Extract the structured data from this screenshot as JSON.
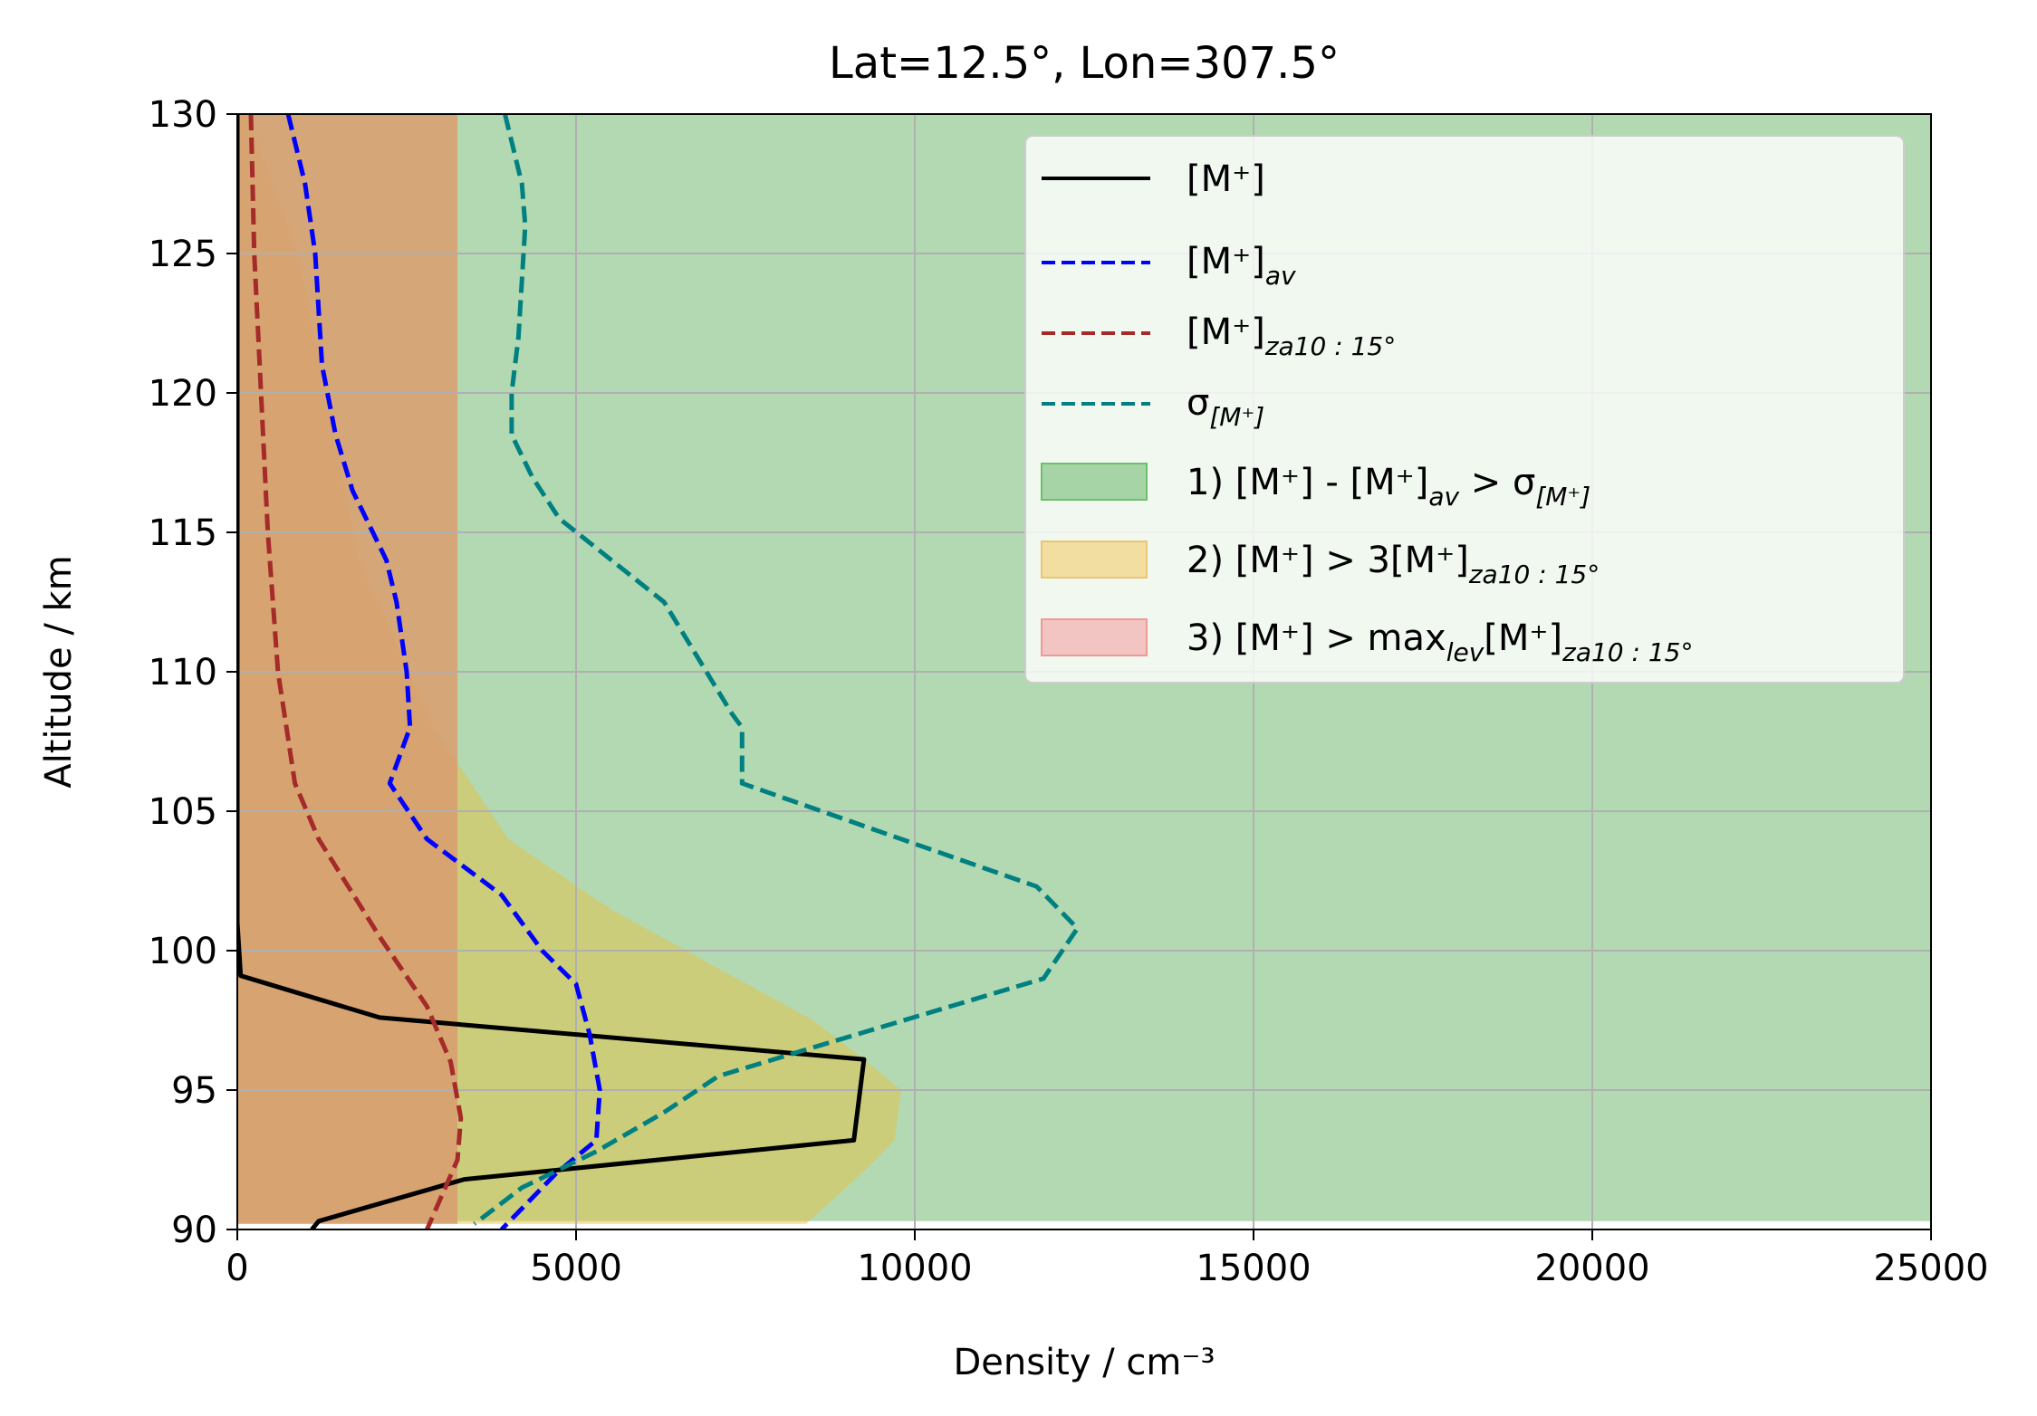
{
  "chart_data": {
    "type": "line",
    "title": "Lat=12.5°, Lon=307.5°",
    "xlabel": "Density / cm⁻³",
    "ylabel": "Altitude / km",
    "xlim": [
      0,
      25000
    ],
    "ylim": [
      90,
      130
    ],
    "xticks": [
      0,
      5000,
      10000,
      15000,
      20000,
      25000
    ],
    "yticks": [
      90,
      95,
      100,
      105,
      110,
      115,
      120,
      125,
      130
    ],
    "grid": true,
    "legend_position": "top-right",
    "colors": {
      "m_plus": "#000000",
      "m_plus_av": "#0000ff",
      "m_plus_za": "#a52a2a",
      "sigma": "#008080",
      "region1": "#b2d9b2",
      "region2": "#e6c244",
      "region3": "#d8a070"
    },
    "series": [
      {
        "key": "m_plus",
        "style": "solid",
        "points": [
          [
            0,
            130
          ],
          [
            0,
            101
          ],
          [
            50,
            99.1
          ],
          [
            2100,
            97.6
          ],
          [
            9250,
            96.1
          ],
          [
            9100,
            93.2
          ],
          [
            3350,
            91.8
          ],
          [
            1200,
            90.3
          ],
          [
            1100,
            90
          ]
        ]
      },
      {
        "key": "m_plus_av",
        "style": "dashed",
        "points": [
          [
            750,
            130
          ],
          [
            1000,
            127.5
          ],
          [
            1150,
            125
          ],
          [
            1250,
            121
          ],
          [
            1450,
            118.5
          ],
          [
            1700,
            116.5
          ],
          [
            2200,
            114
          ],
          [
            2350,
            112.5
          ],
          [
            2500,
            110
          ],
          [
            2550,
            108
          ],
          [
            2250,
            106
          ],
          [
            2800,
            104
          ],
          [
            3900,
            102
          ],
          [
            4500,
            100
          ],
          [
            5000,
            98.8
          ],
          [
            5200,
            97
          ],
          [
            5350,
            95
          ],
          [
            5300,
            93.2
          ],
          [
            4700,
            92
          ],
          [
            3900,
            90
          ]
        ]
      },
      {
        "key": "m_plus_za",
        "style": "dashed",
        "points": [
          [
            200,
            130
          ],
          [
            250,
            125
          ],
          [
            350,
            120
          ],
          [
            450,
            115
          ],
          [
            600,
            110
          ],
          [
            850,
            106
          ],
          [
            1200,
            104
          ],
          [
            2100,
            100.5
          ],
          [
            2800,
            98
          ],
          [
            3150,
            96
          ],
          [
            3300,
            94
          ],
          [
            3250,
            92.5
          ],
          [
            2800,
            90
          ]
        ]
      },
      {
        "key": "sigma",
        "style": "dashed",
        "points": [
          [
            3950,
            130
          ],
          [
            4200,
            127.5
          ],
          [
            4250,
            126
          ],
          [
            4150,
            122
          ],
          [
            4050,
            120
          ],
          [
            4050,
            118.5
          ],
          [
            4350,
            117
          ],
          [
            4750,
            115.5
          ],
          [
            6300,
            112.5
          ],
          [
            7300,
            108.5
          ],
          [
            7450,
            108
          ],
          [
            7450,
            106
          ],
          [
            11800,
            102.3
          ],
          [
            12400,
            100.8
          ],
          [
            11900,
            99
          ],
          [
            8600,
            96.6
          ],
          [
            7100,
            95.5
          ],
          [
            6300,
            94.2
          ],
          [
            5300,
            92.8
          ],
          [
            4200,
            91.5
          ],
          [
            3500,
            90.2
          ]
        ]
      }
    ],
    "regions": [
      {
        "key": "region1",
        "points": [
          [
            0,
            130
          ],
          [
            25000,
            130
          ],
          [
            25000,
            90.3
          ],
          [
            0,
            90.3
          ]
        ]
      },
      {
        "key": "region2",
        "points": [
          [
            150,
            130
          ],
          [
            900,
            125
          ],
          [
            1800,
            114
          ],
          [
            2900,
            108
          ],
          [
            4000,
            104
          ],
          [
            5500,
            101.5
          ],
          [
            8500,
            97.5
          ],
          [
            9250,
            96.1
          ],
          [
            9800,
            95
          ],
          [
            9700,
            93.2
          ],
          [
            9300,
            92.2
          ],
          [
            8400,
            90.2
          ],
          [
            0,
            90.2
          ],
          [
            0,
            130
          ]
        ]
      },
      {
        "key": "region3",
        "points": [
          [
            0,
            130
          ],
          [
            3250,
            130
          ],
          [
            3250,
            90.2
          ],
          [
            0,
            90.2
          ]
        ]
      }
    ],
    "legend": {
      "m_plus": "[M⁺]",
      "m_plus_av_base": "[M⁺]",
      "m_plus_av_sub": "av",
      "m_plus_za_base": "[M⁺]",
      "m_plus_za_sub": "za10 : 15°",
      "sigma_base": "σ",
      "sigma_sub": "[M⁺]",
      "region1_a": "1) [M⁺] - [M⁺]",
      "region1_sub1": "av",
      "region1_b": " > σ",
      "region1_sub2": "[M⁺]",
      "region2_a": "2) [M⁺] > 3[M⁺]",
      "region2_sub": "za10 : 15°",
      "region3_a": "3) [M⁺] > max",
      "region3_sub1": "lev",
      "region3_b": "[M⁺]",
      "region3_sub2": "za10 : 15°"
    }
  }
}
